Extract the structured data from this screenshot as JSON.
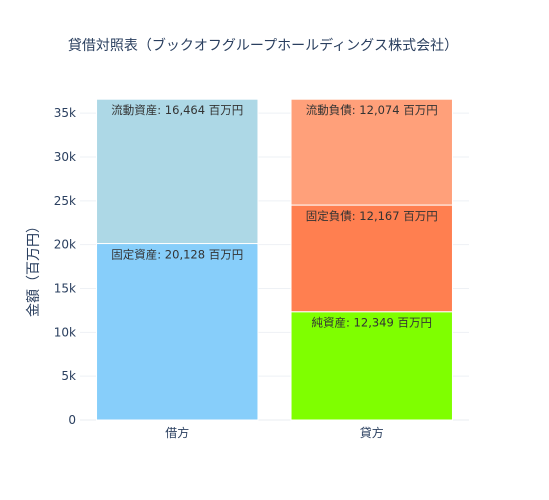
{
  "chart_data": {
    "type": "bar",
    "stacked": true,
    "title": "貸借対照表（ブックオフグループホールディングス株式会社）",
    "ylabel": "金額（百万円）",
    "xlabel": "",
    "ylim": [
      0,
      36500
    ],
    "y_ticks": [
      0,
      5000,
      10000,
      15000,
      20000,
      25000,
      30000,
      35000
    ],
    "y_tick_labels": [
      "0",
      "5k",
      "10k",
      "15k",
      "20k",
      "25k",
      "30k",
      "35k"
    ],
    "categories": [
      "借方",
      "貸方"
    ],
    "grid": true,
    "legend": "none",
    "segments": [
      {
        "category": "借方",
        "name": "固定資産",
        "value": 20128,
        "label": "固定資産: 20,128 百万円",
        "color": "#87cefa"
      },
      {
        "category": "借方",
        "name": "流動資産",
        "value": 16464,
        "label": "流動資産: 16,464 百万円",
        "color": "#add8e6"
      },
      {
        "category": "貸方",
        "name": "純資産",
        "value": 12349,
        "label": "純資産: 12,349 百万円",
        "color": "#7fff00"
      },
      {
        "category": "貸方",
        "name": "固定負債",
        "value": 12167,
        "label": "固定負債: 12,167 百万円",
        "color": "#ff7f50"
      },
      {
        "category": "貸方",
        "name": "流動負債",
        "value": 12074,
        "label": "流動負債: 12,074 百万円",
        "color": "#ffa07a"
      }
    ]
  }
}
